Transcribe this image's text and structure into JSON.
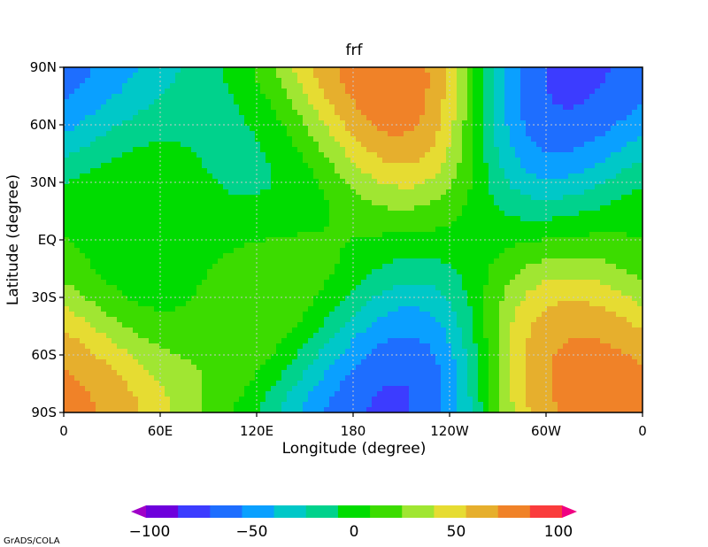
{
  "chart_data": {
    "type": "heatmap",
    "title": "frf",
    "xlabel": "Longitude (degree)",
    "ylabel": "Latitude (degree)",
    "x_ticks": [
      "0",
      "60E",
      "120E",
      "180",
      "120W",
      "60W",
      "0"
    ],
    "y_ticks": [
      "90N",
      "60N",
      "30N",
      "EQ",
      "30S",
      "60S",
      "90S"
    ],
    "xlim": [
      0,
      360
    ],
    "ylim": [
      -90,
      90
    ],
    "grid": true,
    "colorbar": {
      "ticks": [
        "−100",
        "−50",
        "0",
        "50",
        "100"
      ],
      "min": -100,
      "max": 100,
      "step": 10,
      "colors": [
        "#a000c8",
        "#6e00dc",
        "#3c3cff",
        "#1e6eff",
        "#0aa0ff",
        "#00c8c8",
        "#00d28c",
        "#00dc00",
        "#3cdc00",
        "#a0e632",
        "#e6dc32",
        "#e6af2d",
        "#f08228",
        "#fa3c3c",
        "#f00082"
      ]
    },
    "field_description": "Contoured field values (data units) at 10-degree intervals",
    "field_centers": [
      {
        "lon": 5,
        "lat": 78,
        "value": -45
      },
      {
        "lon": 320,
        "lat": 80,
        "value": -70
      },
      {
        "lon": 195,
        "lat": 80,
        "value": 80
      },
      {
        "lon": 190,
        "lat": -78,
        "value": -70
      },
      {
        "lon": 5,
        "lat": -78,
        "value": 60
      },
      {
        "lon": 335,
        "lat": -68,
        "value": 65
      },
      {
        "lon": 30,
        "lat": 28,
        "value": 25
      },
      {
        "lon": 120,
        "lat": 45,
        "value": -20
      },
      {
        "lon": 125,
        "lat": -40,
        "value": 35
      },
      {
        "lon": 45,
        "lat": -22,
        "value": -22
      }
    ]
  },
  "footer": "GrADS/COLA"
}
